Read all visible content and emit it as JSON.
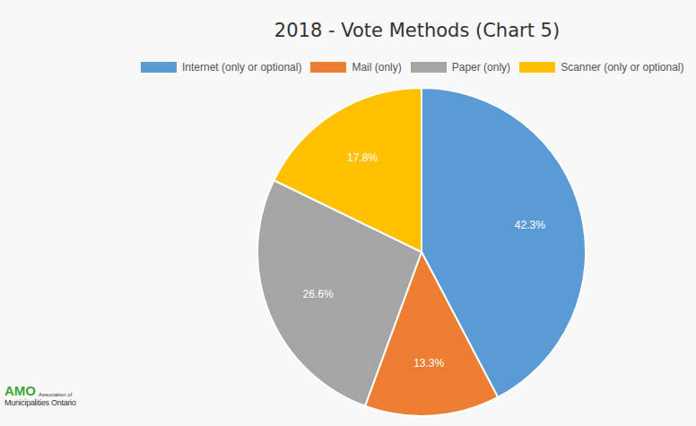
{
  "chart_data": {
    "type": "pie",
    "title": "2018 - Vote Methods (Chart 5)",
    "categories": [
      "Internet (only or optional)",
      "Mail (only)",
      "Paper (only)",
      "Scanner (only or optional)"
    ],
    "values": [
      42.3,
      13.3,
      26.6,
      17.8
    ],
    "value_labels": [
      "42.3%",
      "13.3%",
      "26.6%",
      "17.8%"
    ],
    "colors": [
      "#5b9bd5",
      "#ed7d31",
      "#a5a5a5",
      "#ffc000"
    ],
    "data_labels": true,
    "legend": "top",
    "annotations": [
      "AMO",
      "Association of",
      "Municipalities Ontario"
    ]
  }
}
